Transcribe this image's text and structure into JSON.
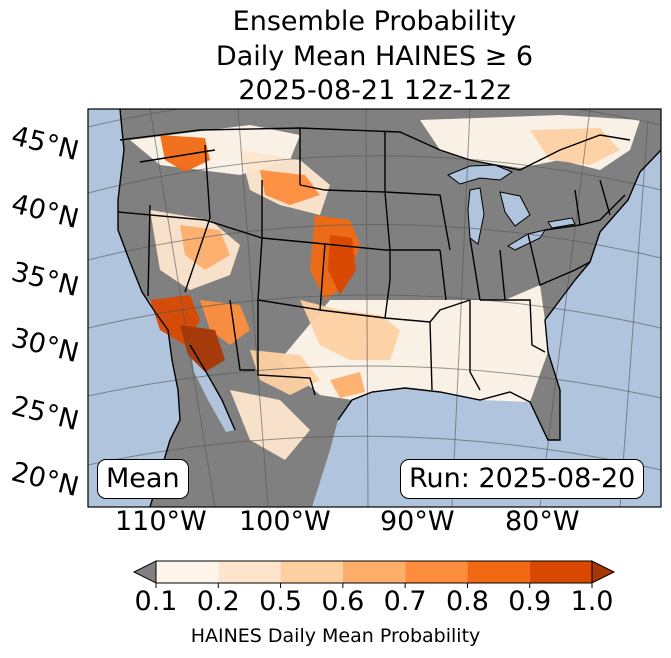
{
  "title": {
    "line1": "Ensemble Probability",
    "line2": "Daily Mean HAINES ≥ 6",
    "line3": "2025-08-21 12z-12z"
  },
  "map": {
    "ocean_color": "#b0c4de",
    "land_color": "#808080",
    "lake_color": "#b0c4de",
    "lat_labels": [
      "45°N",
      "40°N",
      "35°N",
      "30°N",
      "25°N",
      "20°N"
    ],
    "lon_labels": [
      "110°W",
      "100°W",
      "90°W",
      "80°W"
    ],
    "stat_label": "Mean",
    "run_label": "Run: 2025-08-20"
  },
  "colorbar": {
    "tick_labels": [
      "0.1",
      "0.2",
      "0.5",
      "0.6",
      "0.7",
      "0.8",
      "0.9",
      "1.0"
    ],
    "colors": [
      "#fff5eb",
      "#fee6ce",
      "#fdd0a2",
      "#fdae6b",
      "#fd8d3c",
      "#f16913",
      "#d94801"
    ],
    "under_color": "#808080",
    "over_color": "#a63603",
    "title": "HAINES Daily Mean Probability"
  }
}
